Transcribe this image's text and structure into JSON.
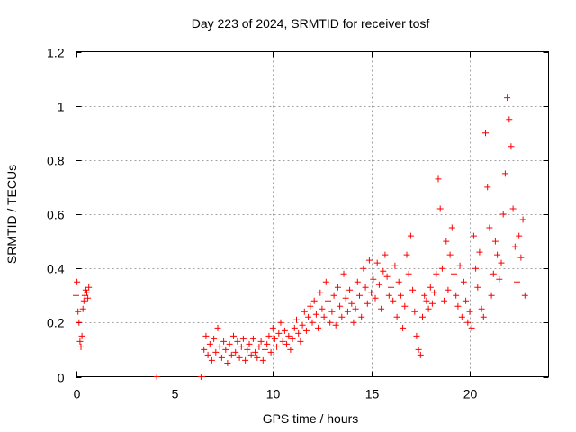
{
  "chart_data": {
    "type": "scatter",
    "title": "Day 223 of 2024, SRMTID for receiver tosf",
    "xlabel": "GPS time / hours",
    "ylabel": "SRMTID / TECUs",
    "xlim": [
      0,
      24
    ],
    "ylim": [
      0,
      1.2
    ],
    "x_ticks": [
      0,
      5,
      10,
      15,
      20
    ],
    "x_tick_labels": [
      "0",
      "5",
      "10",
      "15",
      "20"
    ],
    "y_ticks": [
      0,
      0.2,
      0.4,
      0.6,
      0.8,
      1.0,
      1.2
    ],
    "y_tick_labels": [
      "0",
      "0.2",
      "0.4",
      "0.6",
      "0.8",
      "1",
      "1.2"
    ],
    "grid": true,
    "marker": "+",
    "series": [
      {
        "name": "tosf",
        "color": "#ff0000",
        "x": [
          0.0,
          0.05,
          0.1,
          0.15,
          0.2,
          0.25,
          0.3,
          0.35,
          0.4,
          0.45,
          0.5,
          0.55,
          0.6,
          0.65,
          4.1,
          6.35,
          6.4,
          6.5,
          6.6,
          6.7,
          6.8,
          6.9,
          7.0,
          7.1,
          7.2,
          7.3,
          7.4,
          7.5,
          7.6,
          7.7,
          7.8,
          7.9,
          8.0,
          8.1,
          8.2,
          8.3,
          8.4,
          8.5,
          8.6,
          8.7,
          8.8,
          8.9,
          9.0,
          9.1,
          9.2,
          9.3,
          9.4,
          9.5,
          9.6,
          9.7,
          9.8,
          9.9,
          10.0,
          10.1,
          10.2,
          10.3,
          10.4,
          10.5,
          10.6,
          10.7,
          10.8,
          10.9,
          11.0,
          11.1,
          11.2,
          11.3,
          11.4,
          11.5,
          11.6,
          11.7,
          11.8,
          11.9,
          12.0,
          12.1,
          12.2,
          12.3,
          12.4,
          12.5,
          12.6,
          12.7,
          12.8,
          12.9,
          13.0,
          13.1,
          13.2,
          13.3,
          13.4,
          13.5,
          13.6,
          13.7,
          13.8,
          13.9,
          14.0,
          14.1,
          14.2,
          14.3,
          14.4,
          14.5,
          14.6,
          14.7,
          14.8,
          14.9,
          15.0,
          15.1,
          15.2,
          15.3,
          15.4,
          15.5,
          15.6,
          15.7,
          15.8,
          15.9,
          16.0,
          16.1,
          16.2,
          16.3,
          16.4,
          16.5,
          16.6,
          16.7,
          16.8,
          16.9,
          17.0,
          17.1,
          17.2,
          17.3,
          17.4,
          17.5,
          17.6,
          17.7,
          17.8,
          17.9,
          18.0,
          18.1,
          18.2,
          18.3,
          18.4,
          18.5,
          18.6,
          18.7,
          18.8,
          18.9,
          19.0,
          19.1,
          19.2,
          19.3,
          19.4,
          19.5,
          19.6,
          19.7,
          19.8,
          19.9,
          20.0,
          20.1,
          20.2,
          20.3,
          20.4,
          20.5,
          20.6,
          20.7,
          20.8,
          20.9,
          21.0,
          21.1,
          21.2,
          21.3,
          21.4,
          21.5,
          21.6,
          21.7,
          21.8,
          21.9,
          22.0,
          22.1,
          22.2,
          22.3,
          22.4,
          22.5,
          22.6,
          22.7,
          22.8
        ],
        "y": [
          0.3,
          0.35,
          0.24,
          0.2,
          0.13,
          0.11,
          0.15,
          0.25,
          0.28,
          0.3,
          0.32,
          0.31,
          0.29,
          0.33,
          0.0,
          0.0,
          0.0,
          0.1,
          0.15,
          0.08,
          0.12,
          0.06,
          0.14,
          0.09,
          0.18,
          0.11,
          0.07,
          0.13,
          0.1,
          0.05,
          0.12,
          0.08,
          0.15,
          0.09,
          0.13,
          0.07,
          0.11,
          0.14,
          0.06,
          0.1,
          0.12,
          0.08,
          0.14,
          0.09,
          0.07,
          0.11,
          0.13,
          0.06,
          0.1,
          0.12,
          0.15,
          0.09,
          0.18,
          0.14,
          0.11,
          0.16,
          0.2,
          0.13,
          0.17,
          0.12,
          0.15,
          0.1,
          0.14,
          0.18,
          0.21,
          0.16,
          0.13,
          0.19,
          0.24,
          0.17,
          0.22,
          0.26,
          0.2,
          0.28,
          0.23,
          0.18,
          0.31,
          0.25,
          0.22,
          0.35,
          0.28,
          0.2,
          0.24,
          0.3,
          0.19,
          0.33,
          0.26,
          0.22,
          0.38,
          0.29,
          0.24,
          0.32,
          0.27,
          0.2,
          0.25,
          0.35,
          0.3,
          0.22,
          0.4,
          0.33,
          0.27,
          0.43,
          0.31,
          0.36,
          0.29,
          0.42,
          0.34,
          0.25,
          0.39,
          0.45,
          0.37,
          0.3,
          0.33,
          0.28,
          0.41,
          0.22,
          0.35,
          0.3,
          0.18,
          0.26,
          0.45,
          0.38,
          0.52,
          0.32,
          0.24,
          0.15,
          0.1,
          0.08,
          0.22,
          0.3,
          0.28,
          0.25,
          0.33,
          0.27,
          0.31,
          0.38,
          0.73,
          0.62,
          0.4,
          0.28,
          0.5,
          0.32,
          0.45,
          0.55,
          0.38,
          0.3,
          0.26,
          0.41,
          0.22,
          0.35,
          0.28,
          0.2,
          0.24,
          0.18,
          0.52,
          0.4,
          0.33,
          0.46,
          0.25,
          0.22,
          0.9,
          0.7,
          0.55,
          0.3,
          0.38,
          0.5,
          0.45,
          0.36,
          0.42,
          0.6,
          0.75,
          1.03,
          0.95,
          0.85,
          0.62,
          0.48,
          0.35,
          0.52,
          0.44,
          0.58,
          0.3
        ]
      }
    ]
  }
}
